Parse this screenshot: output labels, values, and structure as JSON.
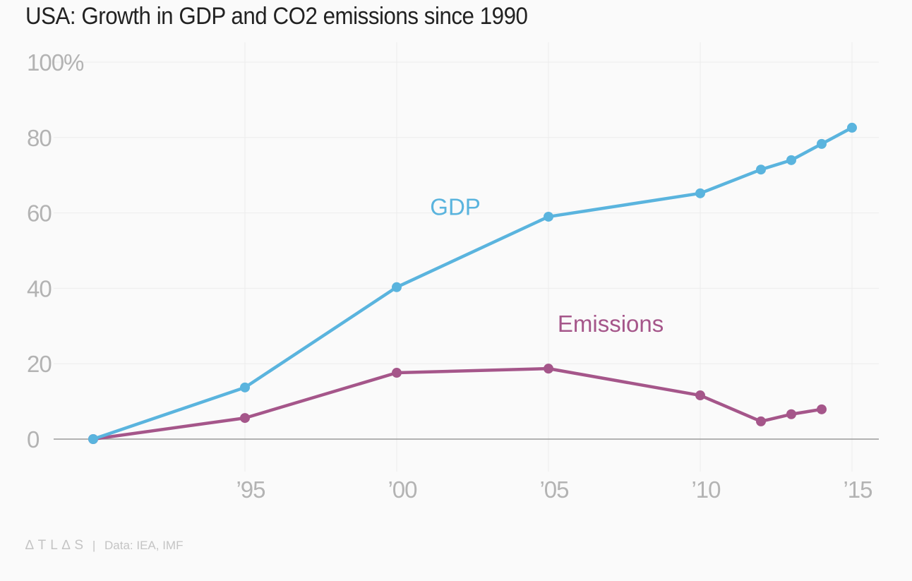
{
  "chart_data": {
    "type": "line",
    "title": "USA: Growth in GDP and CO2 emissions since 1990",
    "xlabel": "",
    "ylabel": "",
    "xlim": [
      1990,
      2015.9
    ],
    "ylim": [
      0,
      100
    ],
    "grid": true,
    "x_ticks": [
      1995,
      2000,
      2005,
      2010,
      2015
    ],
    "x_tick_labels": [
      "’95",
      "’00",
      "’05",
      "’10",
      "’15"
    ],
    "y_ticks": [
      0,
      20,
      40,
      60,
      80,
      100
    ],
    "y_tick_labels": [
      "0",
      "20",
      "40",
      "60",
      "80",
      "100%"
    ],
    "series": [
      {
        "name": "GDP",
        "color": "#5ab4de",
        "label_position": {
          "x": 2001.1,
          "y": 59.5
        },
        "x": [
          1990,
          1995,
          2000,
          2005,
          2010,
          2012,
          2013,
          2014,
          2015
        ],
        "values": [
          0,
          13.7,
          40.3,
          59,
          65.2,
          71.5,
          74,
          78.3,
          82.6
        ]
      },
      {
        "name": "Emissions",
        "color": "#a5568a",
        "label_position": {
          "x": 2005.3,
          "y": 28.5
        },
        "x": [
          1990,
          1995,
          2000,
          2005,
          2010,
          2012,
          2013,
          2014
        ],
        "values": [
          0,
          5.6,
          17.6,
          18.7,
          11.6,
          4.7,
          6.6,
          7.9
        ]
      }
    ],
    "legend": "inline-labels"
  },
  "footer": {
    "brand": "∆TL∆S",
    "separator": "|",
    "source": "Data: IEA, IMF"
  }
}
